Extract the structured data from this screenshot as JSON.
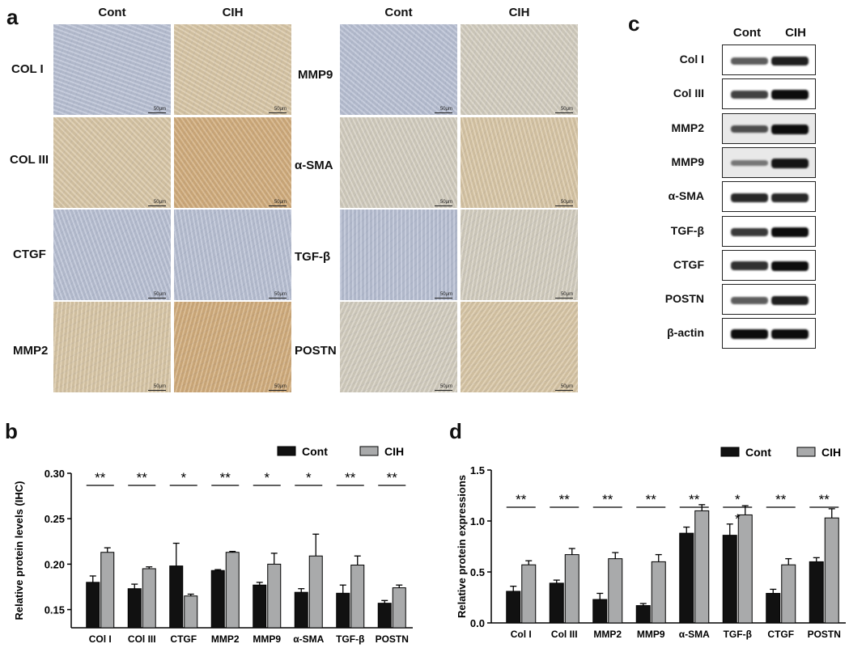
{
  "panels": {
    "a": "a",
    "b": "b",
    "c": "c",
    "d": "d"
  },
  "ihc": {
    "col_headers": [
      "Cont",
      "CIH",
      "Cont",
      "CIH"
    ],
    "left_rows": [
      "COL I",
      "COL III",
      "CTGF",
      "MMP2"
    ],
    "right_rows": [
      "MMP9",
      "α-SMA",
      "TGF-β",
      "POSTN"
    ],
    "scale_bar": "50μm",
    "tile_colors": {
      "blue": "#b9c1d4",
      "pale": "#d4cec0",
      "tan": "#d9c7a6",
      "brown": "#d2ad7c"
    }
  },
  "western": {
    "col_headers": [
      "Cont",
      "CIH"
    ],
    "rows": [
      "Col I",
      "Col III",
      "MMP2",
      "MMP9",
      "α-SMA",
      "TGF-β",
      "CTGF",
      "POSTN",
      "β-actin"
    ]
  },
  "colors": {
    "cont": "#111111",
    "cih": "#a9aaab"
  },
  "chart_data": [
    {
      "type": "bar",
      "ylabel": "Relative protein levels (IHC)",
      "xlabel": "",
      "ylim": [
        0.13,
        0.3
      ],
      "yticks": [
        "0.15",
        "0.20",
        "0.25",
        "0.30"
      ],
      "categories": [
        "COl I",
        "COl III",
        "CTGF",
        "MMP2",
        "MMP9",
        "α-SMA",
        "TGF-β",
        "POSTN"
      ],
      "significance": [
        "**",
        "**",
        "*",
        "**",
        "*",
        "*",
        "**",
        "**"
      ],
      "legend": "top-right",
      "series": [
        {
          "name": "Cont",
          "values": [
            0.18,
            0.173,
            0.198,
            0.193,
            0.177,
            0.169,
            0.168,
            0.157
          ],
          "errors": [
            0.007,
            0.005,
            0.025,
            0.001,
            0.003,
            0.004,
            0.009,
            0.003
          ]
        },
        {
          "name": "CIH",
          "values": [
            0.213,
            0.195,
            0.165,
            0.213,
            0.2,
            0.209,
            0.199,
            0.174
          ],
          "errors": [
            0.005,
            0.002,
            0.002,
            0.001,
            0.012,
            0.024,
            0.01,
            0.003
          ]
        }
      ]
    },
    {
      "type": "bar",
      "ylabel": "Relative protein expressions",
      "xlabel": "",
      "ylim": [
        0.0,
        1.5
      ],
      "yticks": [
        "0.0",
        "0.5",
        "1.0",
        "1.5"
      ],
      "categories": [
        "Col I",
        "Col III",
        "MMP2",
        "MMP9",
        "α-SMA",
        "TGF-β",
        "CTGF",
        "POSTN"
      ],
      "significance": [
        "**",
        "**",
        "**",
        "**",
        "**",
        "*|*",
        "**",
        "**"
      ],
      "legend": "top-right",
      "series": [
        {
          "name": "Cont",
          "values": [
            0.31,
            0.39,
            0.23,
            0.17,
            0.88,
            0.86,
            0.29,
            0.6
          ],
          "errors": [
            0.05,
            0.03,
            0.06,
            0.02,
            0.06,
            0.11,
            0.04,
            0.04
          ]
        },
        {
          "name": "CIH",
          "values": [
            0.57,
            0.67,
            0.63,
            0.6,
            1.1,
            1.06,
            0.57,
            1.03
          ],
          "errors": [
            0.04,
            0.06,
            0.06,
            0.07,
            0.06,
            0.09,
            0.06,
            0.09
          ]
        }
      ]
    }
  ]
}
